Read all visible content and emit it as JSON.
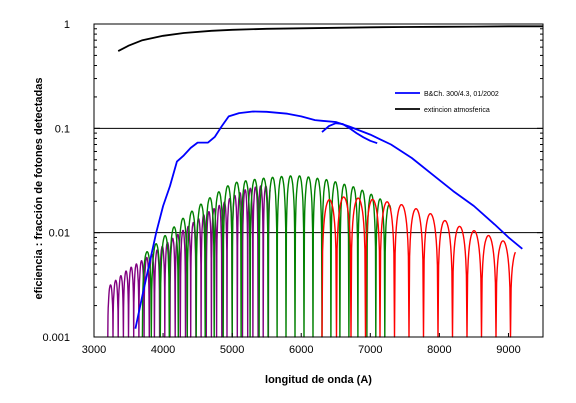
{
  "chart_data": {
    "type": "line",
    "xlabel": "longitud de onda (A)",
    "ylabel": "eficiencia : fracción de fotones detectadas",
    "xlim": [
      3000,
      9500
    ],
    "ylim": [
      0.001,
      1
    ],
    "yscale": "log",
    "x_ticks": [
      3000,
      4000,
      5000,
      6000,
      7000,
      8000,
      9000
    ],
    "y_ticks": [
      0.001,
      0.01,
      0.1,
      1
    ],
    "y_tick_labels": [
      "0.001",
      "0.01",
      "0.1",
      "1"
    ],
    "grid": "horizontal lines at 0.01 and 0.1",
    "legend_position": "top-right",
    "colors": {
      "blue": "#0000ff",
      "black": "#000000",
      "purple": "#800080",
      "green": "#008000",
      "red": "#ff0000"
    },
    "series": [
      {
        "name": "B&Ch. 300/4.3, 01/2002",
        "color": "#0000ff",
        "legend": true,
        "x": [
          3600,
          3700,
          3800,
          3900,
          4000,
          4100,
          4200,
          4300,
          4400,
          4500,
          4650,
          4750,
          4850,
          4950,
          5100,
          5300,
          5500,
          5800,
          6000,
          6200,
          6300,
          6500,
          6700,
          7000,
          7300,
          7600,
          7900,
          8200,
          8500,
          8800,
          9000,
          9200
        ],
        "y": [
          0.0012,
          0.0025,
          0.005,
          0.01,
          0.018,
          0.028,
          0.048,
          0.055,
          0.065,
          0.073,
          0.073,
          0.083,
          0.105,
          0.13,
          0.14,
          0.145,
          0.144,
          0.138,
          0.13,
          0.12,
          0.118,
          0.115,
          0.104,
          0.087,
          0.07,
          0.052,
          0.036,
          0.025,
          0.018,
          0.012,
          0.009,
          0.007
        ]
      },
      {
        "name": "",
        "color": "#0000ff",
        "legend": false,
        "x": [
          6300,
          6400,
          6500,
          6600,
          6700,
          6800,
          6900,
          7000,
          7100
        ],
        "y": [
          0.092,
          0.105,
          0.112,
          0.11,
          0.1,
          0.09,
          0.082,
          0.076,
          0.072
        ]
      },
      {
        "name": "extincion atmosferica",
        "color": "#000000",
        "legend": true,
        "x": [
          3350,
          3500,
          3700,
          4000,
          4300,
          4700,
          5000,
          5500,
          6000,
          6500,
          7000,
          7500,
          8000,
          8500,
          9000,
          9500
        ],
        "y": [
          0.55,
          0.62,
          0.7,
          0.77,
          0.82,
          0.86,
          0.88,
          0.9,
          0.91,
          0.92,
          0.93,
          0.935,
          0.94,
          0.945,
          0.95,
          0.95
        ]
      },
      {
        "name": "",
        "color": "#800080",
        "legend": false,
        "fringes": {
          "x_start": 3200,
          "x_end": 5550,
          "period": 75,
          "floor": 0.001
        },
        "envelope": {
          "x": [
            3200,
            3500,
            3800,
            4000,
            4200,
            4400,
            4600,
            4800,
            5000,
            5200,
            5400,
            5550
          ],
          "y": [
            0.003,
            0.0045,
            0.006,
            0.0075,
            0.0095,
            0.012,
            0.015,
            0.018,
            0.022,
            0.026,
            0.028,
            0.028
          ]
        }
      },
      {
        "name": "",
        "color": "#008000",
        "legend": false,
        "fringes": {
          "x_start": 3700,
          "x_end": 7300,
          "period": 130,
          "floor": 0.001
        },
        "envelope": {
          "x": [
            3700,
            4000,
            4300,
            4600,
            5000,
            5400,
            5800,
            6000,
            6400,
            6800,
            7100,
            7300
          ],
          "y": [
            0.006,
            0.009,
            0.014,
            0.02,
            0.03,
            0.033,
            0.035,
            0.035,
            0.032,
            0.027,
            0.022,
            0.018
          ]
        }
      },
      {
        "name": "",
        "color": "#ff0000",
        "legend": false,
        "fringes": {
          "x_start": 6300,
          "x_end": 9100,
          "period": 210,
          "floor": 0.001
        },
        "envelope": {
          "x": [
            6300,
            6600,
            7000,
            7400,
            7800,
            8200,
            8600,
            9000,
            9100
          ],
          "y": [
            0.02,
            0.022,
            0.021,
            0.019,
            0.016,
            0.012,
            0.01,
            0.008,
            0.007
          ]
        }
      }
    ]
  }
}
